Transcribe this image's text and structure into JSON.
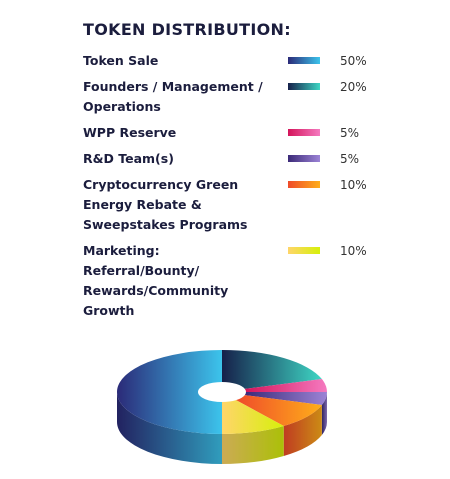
{
  "chart_data": {
    "type": "pie",
    "title": "TOKEN DISTRIBUTION:",
    "categories": [
      "Token Sale",
      "Founders / Management / Operations",
      "WPP Reserve",
      "R&D Team(s)",
      "Cryptocurrency Green Energy Rebate & Sweepstakes Programs",
      "Marketing: Referral/Bounty/ Rewards/Community Growth"
    ],
    "values": [
      50,
      20,
      5,
      5,
      10,
      10
    ],
    "value_labels": [
      "50%",
      "20%",
      "5%",
      "5%",
      "10%",
      "10%"
    ],
    "colors": [
      [
        "#2b2a78",
        "#3cc4ec"
      ],
      [
        "#16204a",
        "#3ed6c4"
      ],
      [
        "#d4145a",
        "#f57ac0"
      ],
      [
        "#3b2a78",
        "#9c83d6"
      ],
      [
        "#ef4b2a",
        "#ffae1a"
      ],
      [
        "#ffd56a",
        "#d6f00a"
      ]
    ]
  }
}
